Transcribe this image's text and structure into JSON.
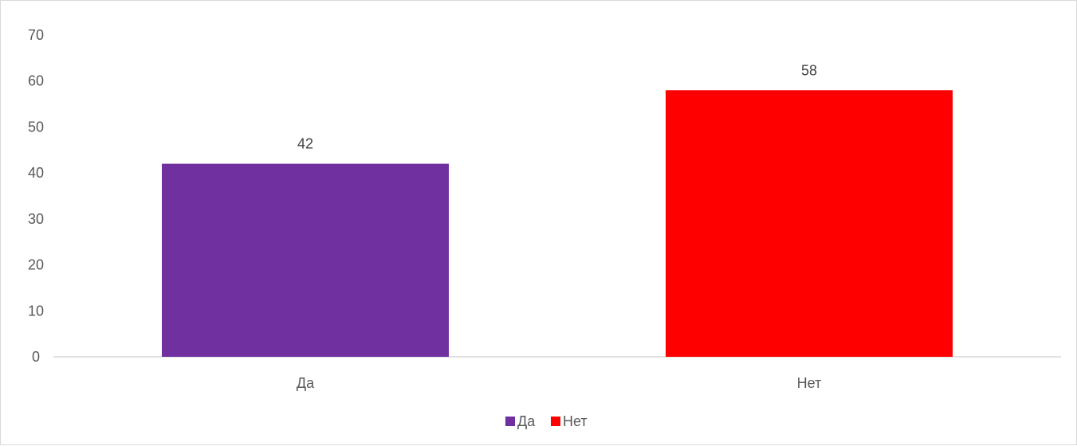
{
  "chart_data": {
    "type": "bar",
    "categories": [
      "Да",
      "Нет"
    ],
    "values": [
      42,
      58
    ],
    "colors": [
      "#7030a0",
      "#ff0000"
    ],
    "title": "",
    "xlabel": "",
    "ylabel": "",
    "ylim": [
      0,
      70
    ],
    "yticks": [
      0,
      10,
      20,
      30,
      40,
      50,
      60,
      70
    ],
    "ytick_labels": [
      "0",
      "10",
      "20",
      "30",
      "40",
      "50",
      "60",
      "70"
    ],
    "data_labels": [
      "42",
      "58"
    ],
    "grid": false,
    "legend": {
      "position": "bottom",
      "entries": [
        "Да",
        "Нет"
      ]
    }
  }
}
